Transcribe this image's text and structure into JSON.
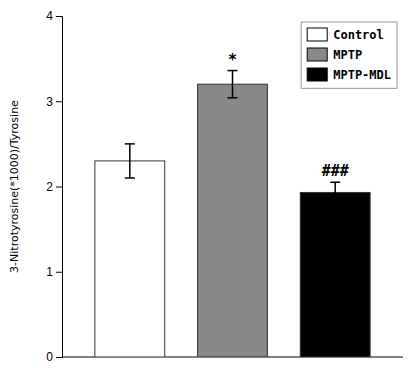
{
  "chart_data": {
    "type": "bar",
    "categories": [
      "Control",
      "MPTP",
      "MPTP-MDL"
    ],
    "values": [
      2.3,
      3.2,
      1.93
    ],
    "errors": [
      0.2,
      0.16,
      0.12
    ],
    "colors": [
      "white",
      "#888888",
      "black"
    ],
    "ylabel": "3-Nitrotyrosine(*1000)/Tyrosine",
    "ylim": [
      0,
      4
    ],
    "yticks": [
      0,
      1,
      2,
      3,
      4
    ],
    "annotations": [
      {
        "text": "*",
        "category": "MPTP"
      },
      {
        "text": "###",
        "category": "MPTP-MDL"
      }
    ],
    "legend": "upper right",
    "grid": false,
    "tick_labels": "y"
  }
}
